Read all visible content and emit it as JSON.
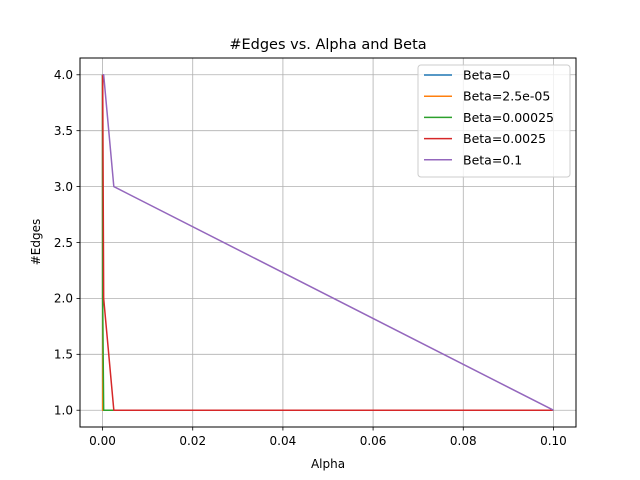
{
  "chart_data": {
    "type": "line",
    "title": "#Edges vs. Alpha and Beta",
    "xlabel": "Alpha",
    "ylabel": "#Edges",
    "xlim": [
      -0.005,
      0.105
    ],
    "ylim": [
      0.85,
      4.15
    ],
    "xticks": [
      0.0,
      0.02,
      0.04,
      0.06,
      0.08,
      0.1
    ],
    "xtick_labels": [
      "0.00",
      "0.02",
      "0.04",
      "0.06",
      "0.08",
      "0.10"
    ],
    "yticks": [
      1.0,
      1.5,
      2.0,
      2.5,
      3.0,
      3.5,
      4.0
    ],
    "ytick_labels": [
      "1.0",
      "1.5",
      "2.0",
      "2.5",
      "3.0",
      "3.5",
      "4.0"
    ],
    "grid": true,
    "legend_position": "top-right",
    "series": [
      {
        "name": "Beta=0",
        "color": "#1f77b4",
        "x": [
          0,
          2.5e-05,
          0.00025,
          0.0025,
          0.1
        ],
        "y": [
          4,
          1,
          1,
          1,
          1
        ]
      },
      {
        "name": "Beta=2.5e-05",
        "color": "#ff7f0e",
        "x": [
          0,
          2.5e-05,
          0.00025,
          0.0025,
          0.1
        ],
        "y": [
          4,
          1,
          1,
          1,
          1
        ]
      },
      {
        "name": "Beta=0.00025",
        "color": "#2ca02c",
        "x": [
          0,
          2.5e-05,
          0.00025,
          0.0025,
          0.1
        ],
        "y": [
          4,
          2,
          1,
          1,
          1
        ]
      },
      {
        "name": "Beta=0.0025",
        "color": "#d62728",
        "x": [
          0,
          2.5e-05,
          0.00025,
          0.0025,
          0.1
        ],
        "y": [
          4,
          4,
          2,
          1,
          1
        ]
      },
      {
        "name": "Beta=0.1",
        "color": "#9467bd",
        "x": [
          0,
          2.5e-05,
          0.00025,
          0.0025,
          0.1
        ],
        "y": [
          4,
          4,
          4,
          3,
          1
        ]
      }
    ]
  }
}
